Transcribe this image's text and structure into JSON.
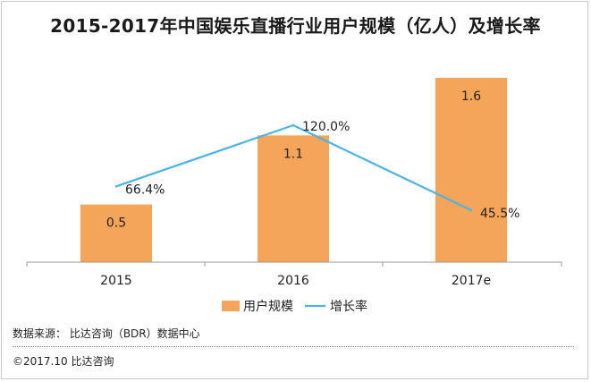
{
  "chart_data": {
    "type": "bar",
    "title": "2015-2017年中国娱乐直播行业用户规模（亿人）及增长率",
    "categories": [
      "2015",
      "2016",
      "2017e"
    ],
    "series": [
      {
        "name": "用户规模",
        "type": "bar",
        "values": [
          0.5,
          1.1,
          1.6
        ],
        "labels": [
          "0.5",
          "1.1",
          "1.6"
        ],
        "color": "#f5a55a"
      },
      {
        "name": "增长率",
        "type": "line",
        "values": [
          66.4,
          120.0,
          45.5
        ],
        "labels": [
          "66.4%",
          "120.0%",
          "45.5%"
        ],
        "color": "#4db3e6"
      }
    ],
    "ylim_bar": [
      0,
      1.6
    ],
    "ylim_line": [
      0,
      130
    ],
    "legend": "bottom-center",
    "grid": false
  },
  "footer": {
    "source": "数据来源： 比达咨询（BDR）数据中心",
    "copyright": "©2017.10   比达咨询"
  }
}
